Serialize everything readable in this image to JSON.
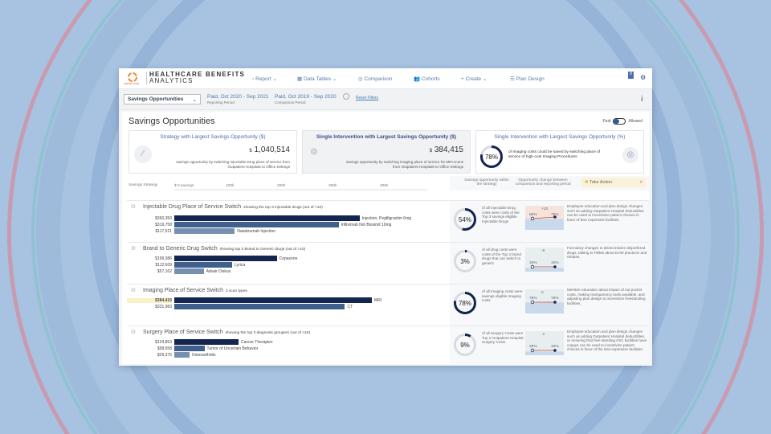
{
  "app": {
    "logo_text": "CEDAR GATE",
    "title_line1": "HEALTHCARE BENEFITS",
    "title_line2": "ANALYTICS",
    "notif_count": "8"
  },
  "nav": [
    {
      "label": "Report",
      "icon": "report-icon"
    },
    {
      "label": "Data Tables",
      "icon": "table-icon"
    },
    {
      "label": "Comparison",
      "icon": "comparison-icon"
    },
    {
      "label": "Cohorts",
      "icon": "cohorts-icon"
    },
    {
      "label": "Create",
      "icon": "plus-icon"
    },
    {
      "label": "Plan Design",
      "icon": "list-icon"
    }
  ],
  "filters": {
    "view": "Savings Opportunities",
    "reporting": "Paid, Oct 2020 - Sep 2021",
    "reporting_label": "Reporting Period",
    "comparison": "Paid, Oct 2019 - Sep 2020",
    "comparison_label": "Comparison Period",
    "reset": "Reset Filters"
  },
  "page": {
    "title": "Savings Opportunities",
    "toggle_left": "Paid",
    "toggle_right": "Allowed",
    "toggle_value": "Paid"
  },
  "cards": [
    {
      "title": "Strategy with Largest Savings Opportunity ($)",
      "currency": "$",
      "value": "1,040,514",
      "desc1": "savings opportunity by switching Injectable Drug place of service from",
      "desc2": "Outpatient Hospitals to Office Settings"
    },
    {
      "title": "Single Intervention with Largest Savings Opportunity ($)",
      "currency": "$",
      "value": "384,415",
      "desc1": "savings opportunity by switching imaging place of service for MRI scans",
      "desc2": "from Outpatient Hospitals to Office Settings"
    },
    {
      "title": "Single Intervention with Largest Savings Opportunity (%)",
      "pct": "78%",
      "pct_value": 78,
      "desc": "of Imaging costs could be saved by switching place of service of high-cost Imaging Procedures"
    }
  ],
  "table_header": {
    "strategy": "Savings Strategy",
    "axis_ticks": [
      "$ 0 savings",
      "100k",
      "200k",
      "300k",
      "400k"
    ],
    "col_opportunity": "Savings opportunity within the strategy",
    "col_change": "Opportunity change between comparison and reporting period",
    "take_action": "Take Action",
    "take_action_arrow": ">"
  },
  "colors": {
    "bar1": "#14254f",
    "bar2": "#3f5f8c",
    "bar3": "#7890b0",
    "ring": "#14254f",
    "accent": "#4a6cb0"
  },
  "sections": [
    {
      "title": "Injectable Drug Place of Service Switch",
      "sub": "showing the top 3 injectable drugs (out of >10)",
      "icon": "syringe-icon",
      "rows": [
        {
          "amount": "$360,350",
          "value": 360350,
          "label": "Injection, Pegfilgrastim 6mg"
        },
        {
          "amount": "$319,758",
          "value": 319758,
          "label": "Infliximab Not Biosimil 10mg"
        },
        {
          "amount": "$117,521",
          "value": 117521,
          "label": "Natalizumab Injection"
        }
      ],
      "pct": "54%",
      "pct_value": 54,
      "pct_desc": "of all Injectable Drug costs were costs of the Top 3 savings eligible Injectable Drugs",
      "change": "+10",
      "from": "66%",
      "to": "76%",
      "action": "Employee education and plan design changes such as adding Outpatient Hospital deductibles can be used to incentivize patient choices in favor of less expensive facilities."
    },
    {
      "title": "Brand to Generic Drug Switch",
      "sub": "showing top 3 Brand to Generic drugs (out of >10)",
      "icon": "pill-bottle-icon",
      "rows": [
        {
          "amount": "$199,386",
          "value": 199386,
          "label": "Copaxone"
        },
        {
          "amount": "$112,609",
          "value": 112609,
          "label": "Lyrica"
        },
        {
          "amount": "$57,162",
          "value": 57162,
          "label": "Advair Diskus"
        }
      ],
      "pct": "3%",
      "pct_value": 3,
      "pct_desc": "of all drug costs were costs of the Top 3 brand drugs that can switch to generic",
      "change": "-6",
      "from": "16%",
      "to": "10%",
      "action": "Formulary changes to disincentivize disprefered drugs, talking to PBMs about DAW practices and rebates."
    },
    {
      "title": "Imaging Place of Service Switch",
      "sub": "2 scan types",
      "icon": "scanner-icon",
      "rows": [
        {
          "amount": "$384,415",
          "value": 384415,
          "label": "MRI"
        },
        {
          "amount": "$331,983",
          "value": 331983,
          "label": "CT"
        }
      ],
      "pct": "78%",
      "pct_value": 78,
      "pct_desc": "of all Imaging costs were savings eligible Imaging costs",
      "change": "0",
      "from": "78%",
      "to": "78%",
      "action": "Member education about impact of out pocket costs, making transparency tools available, and adjusting plan design to incentivize freestanding facilities."
    },
    {
      "title": "Surgery Place of Service Switch",
      "sub": "showing the top 3 diagnosis groupers (out of >10)",
      "icon": "surgery-icon",
      "rows": [
        {
          "amount": "$124,853",
          "value": 124853,
          "label": "Cancer Therapies"
        },
        {
          "amount": "$58,658",
          "value": 58658,
          "label": "Tumor of Uncertain Behavior"
        },
        {
          "amount": "$29,375",
          "value": 29375,
          "label": "Osteoarthritis"
        }
      ],
      "pct": "9%",
      "pct_value": 9,
      "pct_desc": "of all Surgery Costs were Top 3 Outpatient Hospital Surgery Costs",
      "change": "-1",
      "from": "20%",
      "to": "19%",
      "action": "Employee education and plan design changes such as adding Outpatient Hospital deductibles, or ensuring that free-standing ASC facilities have copays can be used to incentivize patient choices in favor of the less expensive facilities."
    }
  ]
}
